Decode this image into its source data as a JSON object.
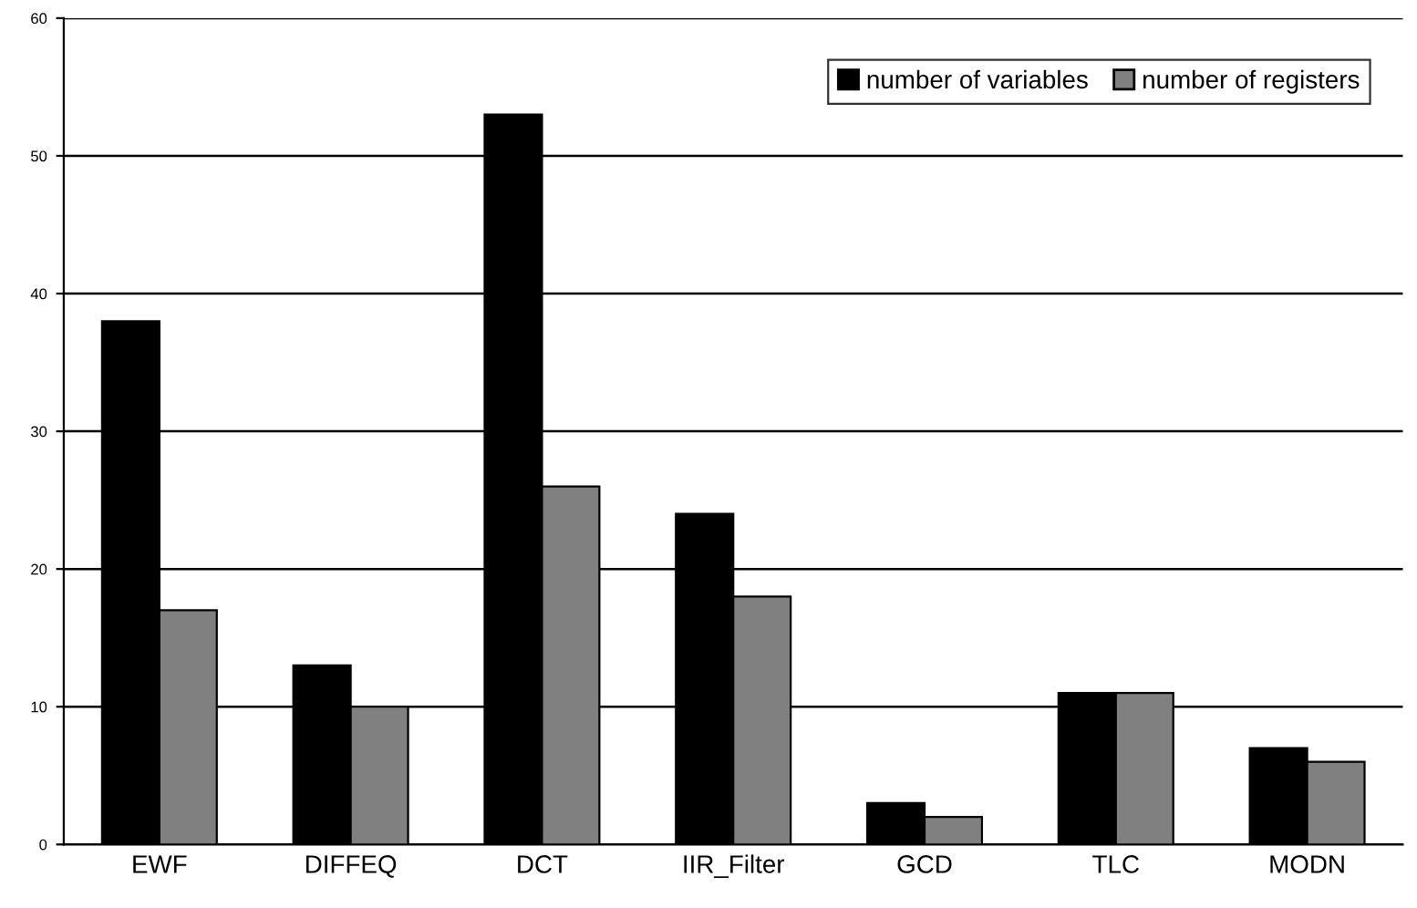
{
  "chart_data": {
    "type": "bar",
    "categories": [
      "EWF",
      "DIFFEQ",
      "DCT",
      "IIR_Filter",
      "GCD",
      "TLC",
      "MODN"
    ],
    "series": [
      {
        "name": "number of variables",
        "color": "#000000",
        "values": [
          38,
          13,
          53,
          24,
          3,
          11,
          7
        ]
      },
      {
        "name": "number of registers",
        "color": "#808080",
        "values": [
          17,
          10,
          26,
          18,
          2,
          11,
          6
        ]
      }
    ],
    "ylim": [
      0,
      60
    ],
    "yticks": [
      0,
      10,
      20,
      30,
      40,
      50,
      60
    ],
    "grid": "y",
    "legend": "top right"
  }
}
